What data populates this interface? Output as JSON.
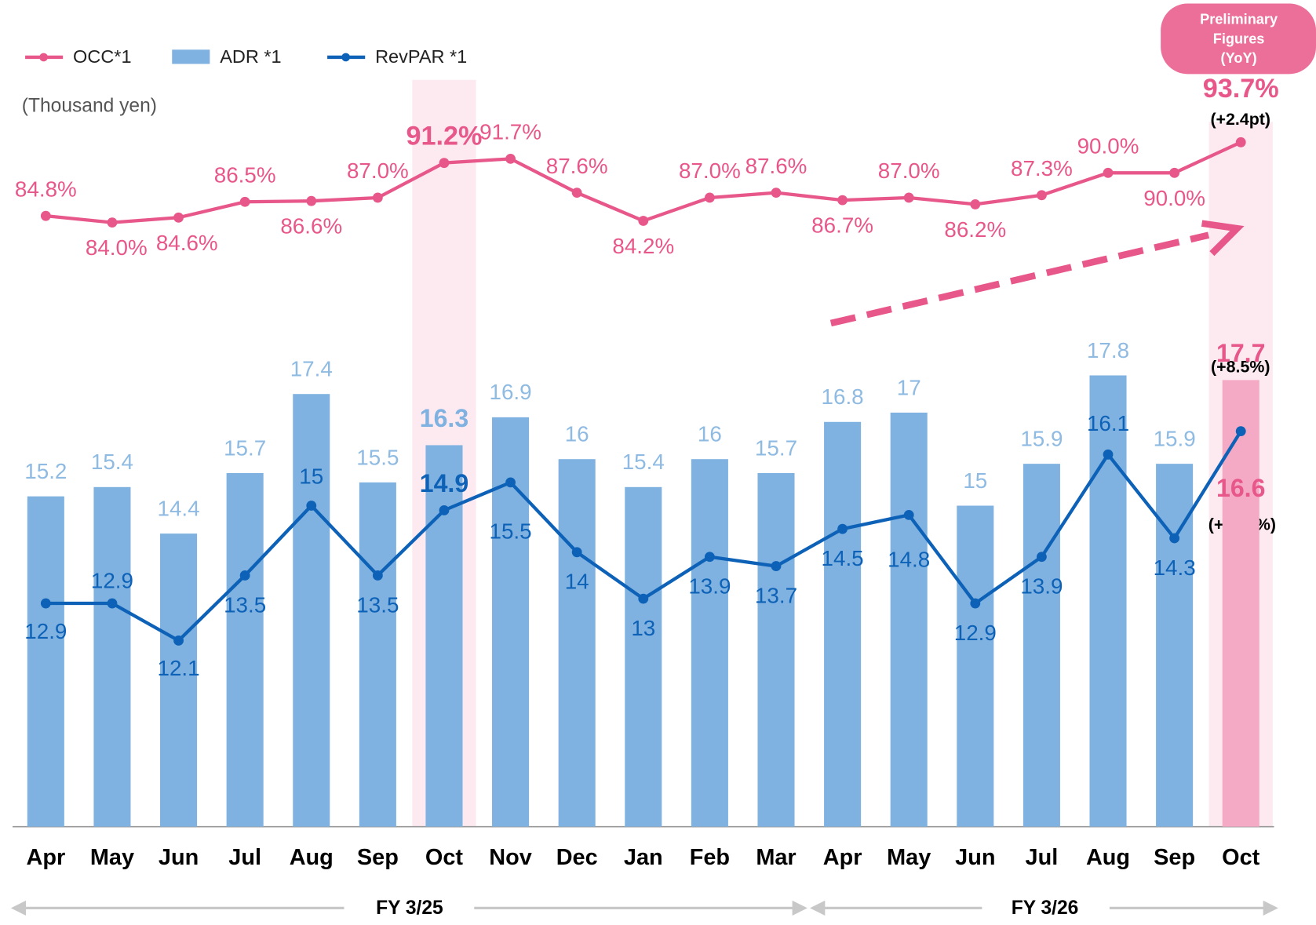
{
  "chart_data": {
    "type": "bar-line",
    "unit_label": "(Thousand yen)",
    "badge": [
      "Preliminary",
      "Figures",
      "(YoY)"
    ],
    "annotations": [
      "(+2.4pt)",
      "(+8.5%)",
      "(+11.5%)"
    ],
    "groups": [
      "FY 3/25",
      "FY 3/26"
    ],
    "categories": [
      "Apr",
      "May",
      "Jun",
      "Jul",
      "Aug",
      "Sep",
      "Oct",
      "Nov",
      "Dec",
      "Jan",
      "Feb",
      "Mar",
      "Apr",
      "May",
      "Jun",
      "Jul",
      "Aug",
      "Sep",
      "Oct"
    ],
    "ylim": [
      8.1,
      25
    ],
    "y2lim": [
      11,
      106
    ],
    "series": [
      {
        "name": "OCC*1",
        "type": "line",
        "axis": "y2",
        "color": "#e8578a",
        "values": [
          84.8,
          84.0,
          84.6,
          86.5,
          86.6,
          87.0,
          91.2,
          91.7,
          87.6,
          84.2,
          87.0,
          87.6,
          86.7,
          87.0,
          86.2,
          87.3,
          90.0,
          90.0,
          93.7
        ],
        "value_labels": [
          "84.8%",
          "84.0%",
          "84.6%",
          "86.5%",
          "86.6%",
          "87.0%",
          "91.2%",
          "91.7%",
          "87.6%",
          "84.2%",
          "87.0%",
          "87.6%",
          "86.7%",
          "87.0%",
          "86.2%",
          "87.3%",
          "90.0%",
          "90.0%",
          "93.7%"
        ]
      },
      {
        "name": "ADR *1",
        "type": "bar",
        "color": "#7fb2e0",
        "highlight_color": "#f4aac4",
        "values": [
          15.2,
          15.4,
          14.4,
          15.7,
          17.4,
          15.5,
          16.3,
          16.9,
          16.0,
          15.4,
          16.0,
          15.7,
          16.8,
          17.0,
          15.0,
          15.9,
          17.8,
          15.9,
          17.7
        ]
      },
      {
        "name": "RevPAR *1",
        "type": "line",
        "color": "#0d62b8",
        "values": [
          12.9,
          12.9,
          12.1,
          13.5,
          15.0,
          13.5,
          14.9,
          15.5,
          14.0,
          13.0,
          13.9,
          13.7,
          14.5,
          14.8,
          12.9,
          13.9,
          16.1,
          14.3,
          16.6
        ]
      }
    ]
  }
}
